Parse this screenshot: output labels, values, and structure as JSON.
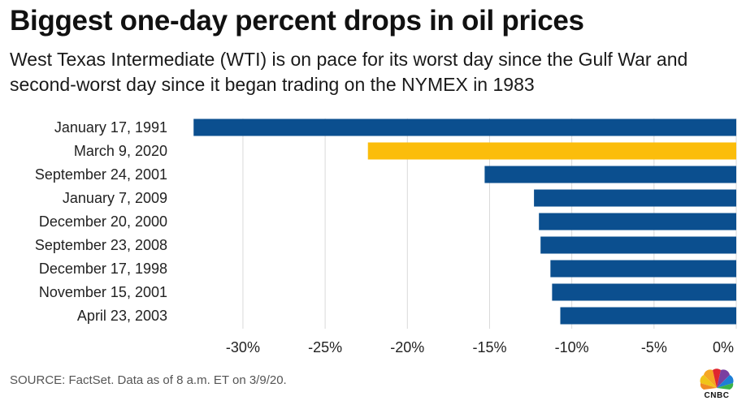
{
  "header": {
    "title": "Biggest one-day percent drops in oil prices",
    "subtitle": "West Texas Intermediate (WTI) is on pace for its worst day since the Gulf War and second-worst day since it began trading on the NYMEX in 1983"
  },
  "footer": {
    "source": "SOURCE: FactSet. Data as of 8 a.m. ET on 3/9/20.",
    "logo_text": "CNBC"
  },
  "colors": {
    "default_bar": "#0b4f8f",
    "highlight_bar": "#fbbd0b",
    "grid": "#d9d9d9"
  },
  "chart_data": {
    "type": "bar",
    "orientation": "horizontal",
    "categories": [
      "January 17, 1991",
      "March 9, 2020",
      "September 24, 2001",
      "January 7, 2009",
      "December 20, 2000",
      "September 23, 2008",
      "December 17, 1998",
      "November 15, 2001",
      "April 23, 2003"
    ],
    "values": [
      -33.0,
      -22.4,
      -15.3,
      -12.3,
      -12.0,
      -11.9,
      -11.3,
      -11.2,
      -10.7
    ],
    "highlight_category": "March 9, 2020",
    "xlim": [
      -34,
      0
    ],
    "ticks": [
      -30,
      -25,
      -20,
      -15,
      -10,
      -5,
      0
    ],
    "tick_labels": [
      "-30%",
      "-25%",
      "-20%",
      "-15%",
      "-10%",
      "-5%",
      "0%"
    ],
    "grid": "vertical",
    "title": "Biggest one-day percent drops in oil prices",
    "xlabel": "",
    "ylabel": ""
  }
}
